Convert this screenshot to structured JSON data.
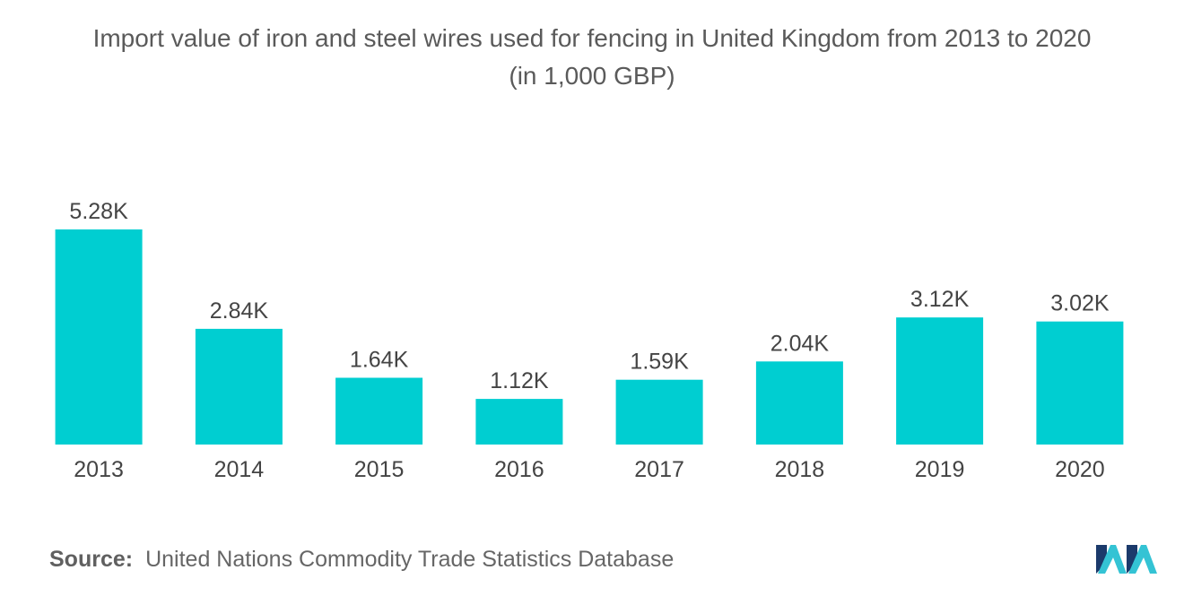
{
  "chart_data": {
    "type": "bar",
    "title_line1": "Import value of iron and steel wires used for fencing in United Kingdom from 2013 to 2020",
    "title_line2": "(in 1,000 GBP)",
    "categories": [
      "2013",
      "2014",
      "2015",
      "2016",
      "2017",
      "2018",
      "2019",
      "2020"
    ],
    "values": [
      5280,
      2840,
      1640,
      1120,
      1590,
      2040,
      3120,
      3020
    ],
    "value_labels": [
      "5.28K",
      "2.84K",
      "1.64K",
      "1.12K",
      "1.59K",
      "2.04K",
      "3.12K",
      "3.02K"
    ],
    "xlabel": "",
    "ylabel": "",
    "ylim": [
      0,
      5280
    ],
    "grid": false,
    "bar_color": "#00CED1"
  },
  "source": {
    "prefix": "Source:",
    "text": "United Nations Commodity Trade Statistics Database"
  },
  "logo": {
    "icon": "mordor-intelligence-logo",
    "color_dark": "#1b3a6b",
    "color_light": "#34c3d4"
  }
}
